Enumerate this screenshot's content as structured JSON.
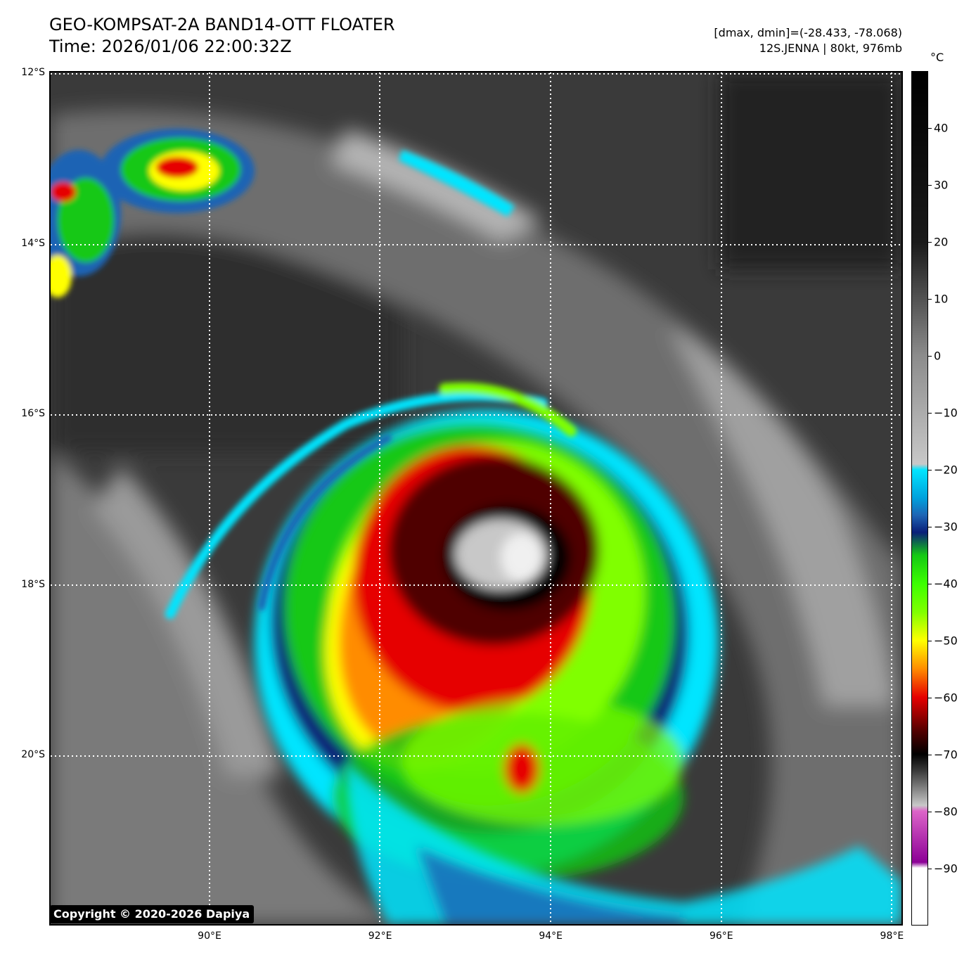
{
  "header": {
    "title_line1": "GEO-KOMPSAT-2A BAND14-OTT FLOATER",
    "title_line2": "Time: 2026/01/06 22:00:32Z",
    "info_line1": "[dmax, dmin]=(-28.433, -78.068)",
    "info_line2": "12S.JENNA | 80kt, 976mb"
  },
  "map": {
    "lat_labels": [
      "12°S",
      "14°S",
      "16°S",
      "18°S",
      "20°S"
    ],
    "lon_labels": [
      "90°E",
      "92°E",
      "94°E",
      "96°E",
      "98°E"
    ],
    "lat_range": [
      -12,
      -22
    ],
    "lon_range": [
      88.14,
      98.14
    ],
    "gridlines": "dotted white",
    "copyright": "Copyright © 2020-2026 Dapiya"
  },
  "colorbar": {
    "unit": "°C",
    "range": [
      -100,
      50
    ],
    "tick_labels": [
      "40",
      "30",
      "20",
      "10",
      "0",
      "−10",
      "−20",
      "−30",
      "−40",
      "−50",
      "−60",
      "−70",
      "−80",
      "−90"
    ],
    "tick_values": [
      40,
      30,
      20,
      10,
      0,
      -10,
      -20,
      -30,
      -40,
      -50,
      -60,
      -70,
      -80,
      -90
    ],
    "colors": {
      "warm": "#000000",
      "mid": "#8c8c8c",
      "cold_gray": "#c8c8c8",
      "cyan": "#00e5ff",
      "blue": "#1e64b4",
      "navy": "#0a1e78",
      "green": "#14c814",
      "lime": "#80ff00",
      "yellow": "#ffff00",
      "orange": "#ff8c00",
      "red": "#e60000",
      "darkred": "#500000",
      "magenta": "#dc64c8",
      "purple": "#8c0096",
      "white": "#ffffff"
    }
  }
}
